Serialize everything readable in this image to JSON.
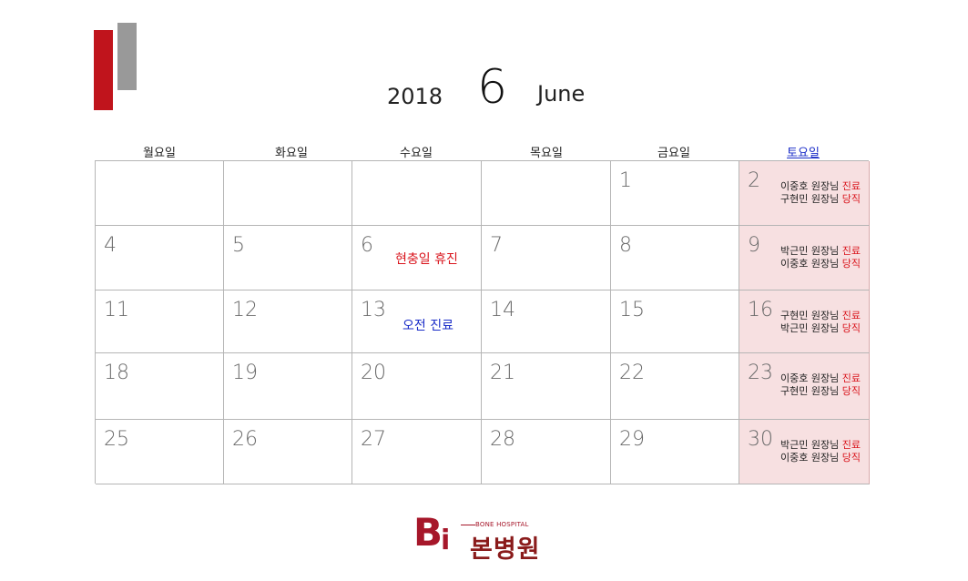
{
  "header": {
    "year": "2018",
    "month_number": "6",
    "month_name": "June"
  },
  "weekdays": [
    "월요일",
    "화요일",
    "수요일",
    "목요일",
    "금요일",
    "토요일"
  ],
  "cells": [
    {
      "day": "",
      "note": ""
    },
    {
      "day": "",
      "note": ""
    },
    {
      "day": "",
      "note": ""
    },
    {
      "day": "",
      "note": ""
    },
    {
      "day": "1",
      "note": ""
    },
    {
      "day": "2",
      "duty": [
        {
          "name": "이중호 원장님",
          "tag": "진료"
        },
        {
          "name": "구현민 원장님",
          "tag": "당직"
        }
      ]
    },
    {
      "day": "4"
    },
    {
      "day": "5"
    },
    {
      "day": "6",
      "note": "현충일 휴진",
      "note_color": "red"
    },
    {
      "day": "7"
    },
    {
      "day": "8"
    },
    {
      "day": "9",
      "duty": [
        {
          "name": "박근민 원장님",
          "tag": "진료"
        },
        {
          "name": "이중호 원장님",
          "tag": "당직"
        }
      ]
    },
    {
      "day": "11"
    },
    {
      "day": "12"
    },
    {
      "day": "13",
      "note": "오전 진료",
      "note_color": "blue"
    },
    {
      "day": "14"
    },
    {
      "day": "15"
    },
    {
      "day": "16",
      "duty": [
        {
          "name": "구현민 원장님",
          "tag": "진료"
        },
        {
          "name": "박근민 원장님",
          "tag": "당직"
        }
      ]
    },
    {
      "day": "18"
    },
    {
      "day": "19"
    },
    {
      "day": "20"
    },
    {
      "day": "21"
    },
    {
      "day": "22"
    },
    {
      "day": "23",
      "duty": [
        {
          "name": "이중호 원장님",
          "tag": "진료"
        },
        {
          "name": "구현민 원장님",
          "tag": "당직"
        }
      ]
    },
    {
      "day": "25"
    },
    {
      "day": "26"
    },
    {
      "day": "27"
    },
    {
      "day": "28"
    },
    {
      "day": "29"
    },
    {
      "day": "30",
      "duty": [
        {
          "name": "박근민 원장님",
          "tag": "진료"
        },
        {
          "name": "이중호 원장님",
          "tag": "당직"
        }
      ]
    }
  ],
  "logo": {
    "letter_b": "B",
    "letter_i": "i",
    "subtitle": "BONE HOSPITAL",
    "name_ko": "본병원"
  },
  "colors": {
    "accent_red": "#c0141c",
    "accent_gray": "#999999",
    "saturday_bg": "#f7e0e1",
    "note_red": "#d9141c",
    "note_blue": "#1a2cc8"
  }
}
